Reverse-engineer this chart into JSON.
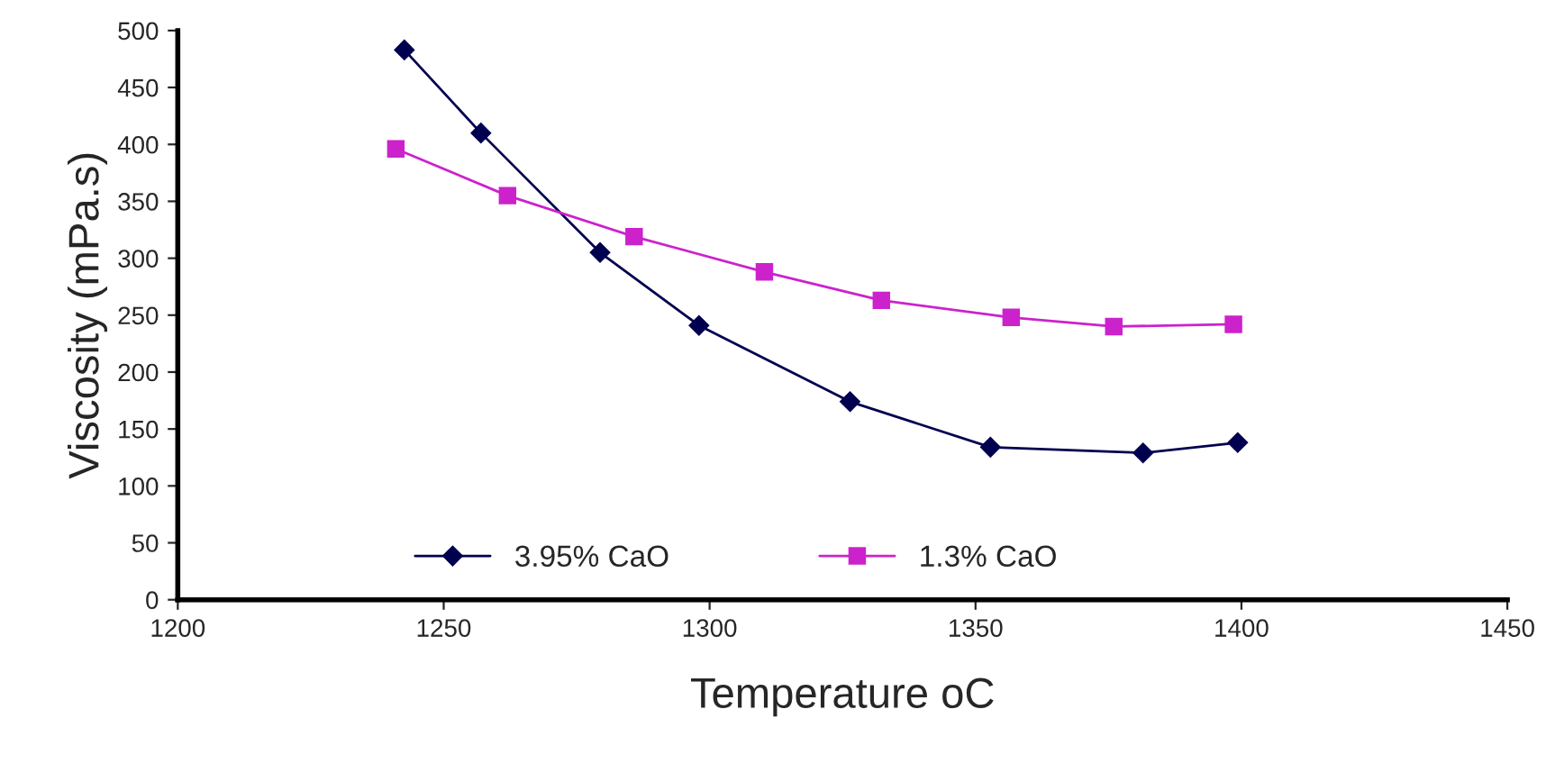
{
  "chart_data": {
    "type": "line",
    "xlabel": "Temperature oC",
    "ylabel": "Viscosity (mPa.s)",
    "xlim": [
      1200,
      1450
    ],
    "xticks": [
      1200,
      1250,
      1300,
      1350,
      1400,
      1450
    ],
    "ylim": [
      0,
      500
    ],
    "yticks": [
      0,
      50,
      100,
      150,
      200,
      250,
      300,
      350,
      400,
      450,
      500
    ],
    "grid": false,
    "legend": "bottom",
    "series": [
      {
        "name": "3.95% CaO",
        "color": "#000050",
        "marker": "diamond",
        "x": [
          1242.6,
          1257,
          1279.4,
          1298,
          1326.4,
          1352.8,
          1381.5,
          1399.3
        ],
        "values": [
          483,
          410,
          305,
          241,
          174,
          134,
          129,
          138
        ]
      },
      {
        "name": "1.3% CaO",
        "color": "#cc22cc",
        "marker": "square",
        "x": [
          1241,
          1262,
          1285.8,
          1310.3,
          1332.3,
          1356.7,
          1376,
          1398.5
        ],
        "values": [
          396,
          355,
          319,
          288,
          263,
          248,
          240,
          242
        ]
      }
    ]
  }
}
